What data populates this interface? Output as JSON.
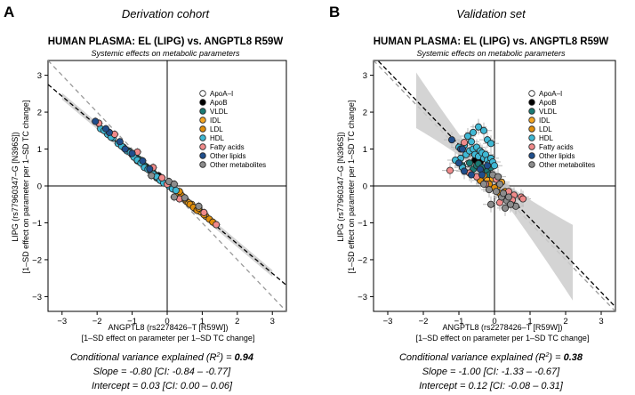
{
  "panels": [
    {
      "letter": "A",
      "cohort": "Derivation cohort",
      "title": "HUMAN PLASMA: EL (LIPG) vs. ANGPTL8 R59W",
      "subtitle": "Systemic effects on metabolic parameters",
      "stats": {
        "r2_prefix": "Conditional variance explained (R",
        "r2_sup": "2",
        "r2_mid": ") = ",
        "r2_value": "0.94",
        "slope": "Slope = -0.80 [CI: -0.84 – -0.77]",
        "intercept": "Intercept = 0.03 [CI: 0.00 – 0.06]"
      }
    },
    {
      "letter": "B",
      "cohort": "Validation set",
      "title": "HUMAN PLASMA: EL (LIPG) vs. ANGPTL8 R59W",
      "subtitle": "Systemic effects on metabolic parameters",
      "stats": {
        "r2_prefix": "Conditional variance explained (R",
        "r2_sup": "2",
        "r2_mid": ") = ",
        "r2_value": "0.38",
        "slope": "Slope = -1.00 [CI: -1.33 – -0.67]",
        "intercept": "Intercept = 0.12 [CI: -0.08 – 0.31]"
      }
    }
  ],
  "chart_data": [
    {
      "type": "scatter",
      "title": "HUMAN PLASMA: EL (LIPG) vs. ANGPTL8 R59W",
      "subtitle": "Systemic effects on metabolic parameters",
      "xlabel_line1": "ANGPTL8 (rs2278426–T [R59W])",
      "xlabel_line2": "[1–SD effect on parameter per 1–SD TC change]",
      "ylabel_line1": "LIPG (rs77960347–G [N396S])",
      "ylabel_line2": "[1–SD effect on parameter per 1–SD TC change]",
      "xlim": [
        -3.4,
        3.4
      ],
      "ylim": [
        -3.4,
        3.4
      ],
      "xticks": [
        -3,
        -2,
        -1,
        0,
        1,
        2,
        3
      ],
      "yticks": [
        -3,
        -2,
        -1,
        0,
        1,
        2,
        3
      ],
      "tick_labels": [
        "−3",
        "−2",
        "−1",
        "0",
        "1",
        "2",
        "3"
      ],
      "reference_line": {
        "slope": -1,
        "intercept": 0
      },
      "fit": {
        "slope": -0.8,
        "intercept": 0.03,
        "band": 0.09,
        "x_range": [
          -3.0,
          3.0
        ]
      },
      "series": [
        {
          "name": "ApoA–I",
          "color": "#ffffff",
          "points": []
        },
        {
          "name": "ApoB",
          "color": "#000000",
          "points": [
            [
              -0.25,
              0.28
            ],
            [
              -0.6,
              0.5
            ]
          ]
        },
        {
          "name": "VLDL",
          "color": "#1b7a73",
          "points": [
            [
              -1.0,
              0.85
            ],
            [
              -0.9,
              0.8
            ],
            [
              -0.8,
              0.72
            ],
            [
              -0.7,
              0.6
            ],
            [
              -0.6,
              0.52
            ],
            [
              -0.55,
              0.48
            ],
            [
              -0.45,
              0.4
            ],
            [
              -0.35,
              0.3
            ],
            [
              -0.3,
              0.22
            ],
            [
              -0.2,
              0.18
            ],
            [
              -1.1,
              0.95
            ],
            [
              -0.85,
              0.68
            ],
            [
              -0.65,
              0.55
            ],
            [
              -0.4,
              0.36
            ]
          ]
        },
        {
          "name": "IDL",
          "color": "#f5a623",
          "points": [
            [
              0.3,
              -0.2
            ],
            [
              0.45,
              -0.3
            ],
            [
              0.55,
              -0.42
            ],
            [
              0.7,
              -0.5
            ],
            [
              0.8,
              -0.62
            ],
            [
              0.95,
              -0.7
            ],
            [
              1.1,
              -0.82
            ],
            [
              0.6,
              -0.45
            ]
          ]
        },
        {
          "name": "LDL",
          "color": "#e08e0b",
          "points": [
            [
              0.4,
              -0.25
            ],
            [
              0.5,
              -0.35
            ],
            [
              0.65,
              -0.5
            ],
            [
              0.75,
              -0.58
            ],
            [
              0.85,
              -0.66
            ],
            [
              1.05,
              -0.78
            ],
            [
              1.2,
              -0.9
            ],
            [
              1.3,
              -0.98
            ],
            [
              0.35,
              -0.15
            ],
            [
              0.9,
              -0.6
            ]
          ]
        },
        {
          "name": "HDL",
          "color": "#3fb8d4",
          "points": [
            [
              -1.9,
              1.55
            ],
            [
              -1.7,
              1.4
            ],
            [
              -1.55,
              1.3
            ],
            [
              -1.4,
              1.15
            ],
            [
              -1.25,
              1.05
            ],
            [
              -1.15,
              0.95
            ],
            [
              -1.05,
              0.9
            ],
            [
              -0.95,
              0.78
            ],
            [
              -0.85,
              0.7
            ],
            [
              -0.75,
              0.62
            ],
            [
              -0.65,
              0.5
            ],
            [
              -0.5,
              0.42
            ],
            [
              -0.4,
              0.32
            ],
            [
              -0.3,
              0.25
            ],
            [
              -0.2,
              0.15
            ],
            [
              -0.1,
              0.08
            ],
            [
              -1.6,
              1.32
            ],
            [
              -1.3,
              1.08
            ],
            [
              -0.55,
              0.45
            ],
            [
              0.05,
              0.0
            ],
            [
              0.15,
              -0.08
            ],
            [
              0.25,
              -0.12
            ],
            [
              -1.8,
              1.5
            ]
          ]
        },
        {
          "name": "Fatty acids",
          "color": "#f08a8a",
          "points": [
            [
              -1.95,
              1.7
            ],
            [
              -1.5,
              1.4
            ],
            [
              -0.85,
              0.92
            ],
            [
              -0.4,
              0.5
            ],
            [
              0.0,
              0.05
            ],
            [
              1.05,
              -0.72
            ],
            [
              -0.15,
              0.22
            ],
            [
              0.35,
              -0.35
            ],
            [
              1.4,
              -1.05
            ]
          ]
        },
        {
          "name": "Other lipids",
          "color": "#1f4e8c",
          "points": [
            [
              -1.65,
              1.45
            ],
            [
              -1.35,
              1.2
            ],
            [
              -1.2,
              1.0
            ],
            [
              -1.0,
              0.88
            ],
            [
              -0.7,
              0.68
            ],
            [
              -0.5,
              0.46
            ],
            [
              -2.05,
              1.75
            ],
            [
              -1.75,
              1.55
            ]
          ]
        },
        {
          "name": "Other metabolites",
          "color": "#8c8c8c",
          "points": [
            [
              -0.45,
              0.28
            ],
            [
              0.05,
              0.12
            ],
            [
              0.2,
              0.05
            ],
            [
              0.5,
              -0.32
            ],
            [
              0.9,
              -0.55
            ],
            [
              0.2,
              -0.3
            ]
          ]
        }
      ],
      "legend_position": "top-right"
    },
    {
      "type": "scatter",
      "title": "HUMAN PLASMA: EL (LIPG) vs. ANGPTL8 R59W",
      "subtitle": "Systemic effects on metabolic parameters",
      "xlabel_line1": "ANGPTL8 (rs2278426–T [R59W])",
      "xlabel_line2": "[1–SD effect on parameter per 1–SD TC change]",
      "ylabel_line1": "LIPG (rs77960347–G [N396S])",
      "ylabel_line2": "[1–SD effect on parameter per 1–SD TC change]",
      "xlim": [
        -3.4,
        3.4
      ],
      "ylim": [
        -3.4,
        3.4
      ],
      "xticks": [
        -3,
        -2,
        -1,
        0,
        1,
        2,
        3
      ],
      "yticks": [
        -3,
        -2,
        -1,
        0,
        1,
        2,
        3
      ],
      "tick_labels": [
        "−3",
        "−2",
        "−1",
        "0",
        "1",
        "2",
        "3"
      ],
      "reference_line": {
        "slope": -1,
        "intercept": 0
      },
      "fit": {
        "slope": -1.0,
        "intercept": 0.12,
        "band_at_center": 0.12,
        "band_growth": 0.5,
        "x_range": [
          -2.2,
          2.2
        ]
      },
      "series": [
        {
          "name": "ApoA–I",
          "color": "#ffffff",
          "points": [
            [
              -0.6,
              0.9
            ],
            [
              -0.75,
              0.6
            ]
          ]
        },
        {
          "name": "ApoB",
          "color": "#000000",
          "points": [
            [
              -0.4,
              0.65
            ],
            [
              -0.55,
              0.7
            ]
          ]
        },
        {
          "name": "VLDL",
          "color": "#1b7a73",
          "points": [
            [
              -0.9,
              0.55
            ],
            [
              -0.7,
              0.62
            ],
            [
              -0.6,
              0.45
            ],
            [
              -0.5,
              0.55
            ],
            [
              -0.45,
              0.6
            ],
            [
              -0.35,
              0.5
            ],
            [
              -0.3,
              0.35
            ],
            [
              -0.2,
              0.4
            ],
            [
              -0.15,
              0.3
            ],
            [
              -0.1,
              0.5
            ]
          ]
        },
        {
          "name": "IDL",
          "color": "#f5a623",
          "points": [
            [
              -0.3,
              0.28
            ],
            [
              -0.2,
              0.15
            ],
            [
              -0.05,
              0.2
            ],
            [
              0.1,
              0.0
            ],
            [
              0.2,
              0.1
            ]
          ]
        },
        {
          "name": "LDL",
          "color": "#e08e0b",
          "points": [
            [
              -0.4,
              0.15
            ],
            [
              -0.15,
              0.05
            ],
            [
              0.0,
              -0.05
            ],
            [
              0.15,
              -0.2
            ],
            [
              0.3,
              -0.15
            ]
          ]
        },
        {
          "name": "HDL",
          "color": "#3fb8d4",
          "points": [
            [
              -1.0,
              1.05
            ],
            [
              -0.95,
              0.75
            ],
            [
              -0.85,
              1.1
            ],
            [
              -0.8,
              0.85
            ],
            [
              -0.75,
              1.35
            ],
            [
              -0.7,
              0.95
            ],
            [
              -0.65,
              1.2
            ],
            [
              -0.6,
              1.0
            ],
            [
              -0.55,
              0.85
            ],
            [
              -0.5,
              1.05
            ],
            [
              -0.45,
              0.8
            ],
            [
              -0.4,
              0.95
            ],
            [
              -0.35,
              0.9
            ],
            [
              -0.3,
              0.75
            ],
            [
              -0.25,
              0.85
            ],
            [
              -0.2,
              0.7
            ],
            [
              -0.15,
              0.6
            ],
            [
              -0.1,
              0.75
            ],
            [
              -0.05,
              0.65
            ],
            [
              0.0,
              0.55
            ],
            [
              -0.6,
              1.45
            ],
            [
              -0.45,
              1.6
            ],
            [
              -1.1,
              0.7
            ],
            [
              -0.9,
              0.5
            ],
            [
              -0.3,
              1.5
            ],
            [
              -0.2,
              1.25
            ],
            [
              -0.1,
              1.15
            ]
          ]
        },
        {
          "name": "Fatty acids",
          "color": "#f08a8a",
          "points": [
            [
              -1.25,
              0.42
            ],
            [
              -0.7,
              0.35
            ],
            [
              -0.5,
              0.25
            ],
            [
              -0.25,
              0.05
            ],
            [
              0.05,
              0.18
            ],
            [
              0.4,
              -0.15
            ],
            [
              0.55,
              -0.25
            ],
            [
              0.75,
              -0.3
            ],
            [
              0.8,
              -0.35
            ],
            [
              0.15,
              -0.45
            ],
            [
              0.5,
              -0.38
            ],
            [
              -0.85,
              1.18
            ]
          ]
        },
        {
          "name": "Other lipids",
          "color": "#1f4e8c",
          "points": [
            [
              -1.0,
              0.62
            ],
            [
              -0.95,
              1.0
            ],
            [
              -0.85,
              0.4
            ],
            [
              -0.65,
              0.3
            ],
            [
              -0.4,
              0.45
            ],
            [
              -0.35,
              0.3
            ],
            [
              -0.2,
              0.55
            ],
            [
              -1.2,
              1.25
            ],
            [
              -0.9,
              1.0
            ]
          ]
        },
        {
          "name": "Other metabolites",
          "color": "#8c8c8c",
          "points": [
            [
              -0.3,
              0.05
            ],
            [
              -0.15,
              -0.1
            ],
            [
              -0.05,
              0.3
            ],
            [
              0.05,
              -0.15
            ],
            [
              0.1,
              0.25
            ],
            [
              0.2,
              -0.3
            ],
            [
              0.25,
              -0.2
            ],
            [
              0.35,
              -0.4
            ],
            [
              0.4,
              -0.3
            ],
            [
              0.6,
              -0.55
            ],
            [
              0.45,
              -0.5
            ],
            [
              0.3,
              -0.6
            ],
            [
              -0.1,
              -0.5
            ],
            [
              0.15,
              0.05
            ]
          ]
        }
      ],
      "legend_position": "top-right"
    }
  ]
}
